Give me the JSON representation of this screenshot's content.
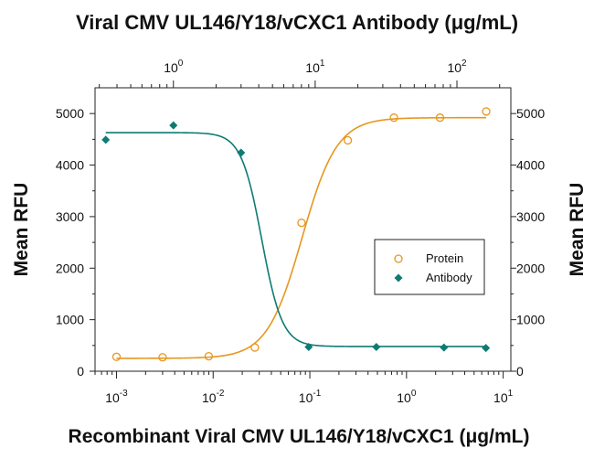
{
  "chart_data": {
    "type": "scatter",
    "title": "Viral CMV UL146/Y18/vCXC1 Antibody (μg/mL)",
    "xlabel": "Recombinant Viral CMV UL146/Y18/vCXC1 (μg/mL)",
    "ylabel_left": "Mean RFU",
    "ylabel_right": "Mean RFU",
    "bottom_axis": {
      "scale": "log",
      "range": [
        0.0006,
        12
      ],
      "ticks": [
        {
          "value": 0.001,
          "base": "10",
          "exp": "-3"
        },
        {
          "value": 0.01,
          "base": "10",
          "exp": "-2"
        },
        {
          "value": 0.1,
          "base": "10",
          "exp": "-1"
        },
        {
          "value": 1,
          "base": "10",
          "exp": "0"
        },
        {
          "value": 10,
          "base": "10",
          "exp": "1"
        }
      ]
    },
    "top_axis": {
      "scale": "log",
      "range": [
        0.28,
        240
      ],
      "ticks": [
        {
          "value": 1,
          "base": "10",
          "exp": "0"
        },
        {
          "value": 10,
          "base": "10",
          "exp": "1"
        },
        {
          "value": 100,
          "base": "10",
          "exp": "2"
        }
      ]
    },
    "y_axis": {
      "range": [
        0,
        5500
      ],
      "ticks": [
        "0",
        "1000",
        "2000",
        "3000",
        "4000",
        "5000"
      ]
    },
    "legend": {
      "position": "right",
      "entries": [
        {
          "label": "Protein",
          "marker": "circle-open",
          "color": "#E8961E"
        },
        {
          "label": "Antibody",
          "marker": "diamond-filled",
          "color": "#0E7B74"
        }
      ]
    },
    "series": [
      {
        "name": "Protein",
        "axis": "bottom",
        "color": "#E8961E",
        "marker": "circle-open",
        "points": [
          {
            "x": 0.001,
            "y": 280
          },
          {
            "x": 0.003,
            "y": 270
          },
          {
            "x": 0.009,
            "y": 290
          },
          {
            "x": 0.027,
            "y": 460
          },
          {
            "x": 0.082,
            "y": 2880
          },
          {
            "x": 0.247,
            "y": 4480
          },
          {
            "x": 0.741,
            "y": 4920
          },
          {
            "x": 2.22,
            "y": 4920
          },
          {
            "x": 6.67,
            "y": 5040
          }
        ],
        "fit": {
          "bottom": 250,
          "top": 4920,
          "ec50": 0.083,
          "hill": 2.4
        }
      },
      {
        "name": "Antibody",
        "axis": "top",
        "color": "#0E7B74",
        "marker": "diamond-filled",
        "points": [
          {
            "x": 0.333,
            "y": 4490
          },
          {
            "x": 1.0,
            "y": 4770
          },
          {
            "x": 3.0,
            "y": 4240
          },
          {
            "x": 9.0,
            "y": 470
          },
          {
            "x": 27.0,
            "y": 470
          },
          {
            "x": 81.0,
            "y": 460
          },
          {
            "x": 160.0,
            "y": 450
          }
        ],
        "fit": {
          "bottom": 480,
          "top": 4630,
          "ec50": 4.2,
          "hill": -6.0
        }
      }
    ]
  }
}
